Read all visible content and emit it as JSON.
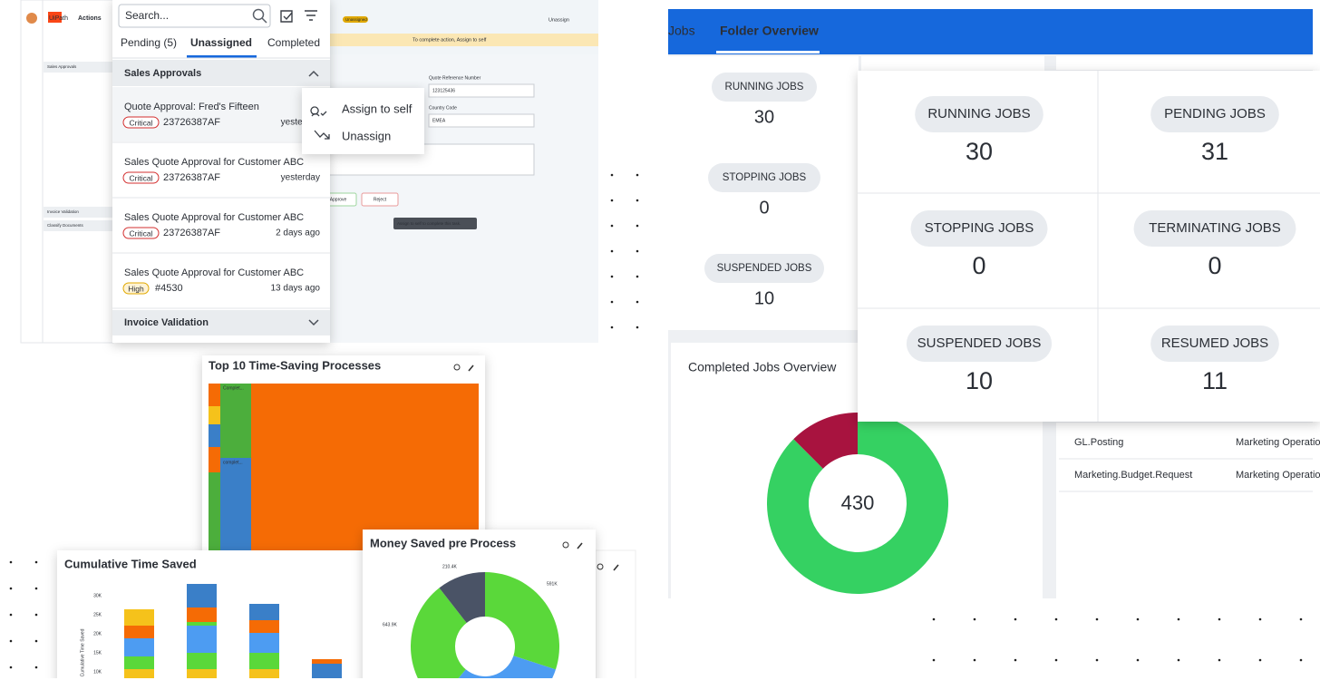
{
  "actions_app": {
    "logo": "UiPath",
    "brand": "Actions",
    "search_placeholder": "Search...",
    "tabs": [
      "Pending (5)",
      "Unassigned",
      "Completed"
    ],
    "sections": [
      "Sales Approvals",
      "Invoice Validation"
    ],
    "tasks": [
      {
        "title": "Quote Approval: Fred's Fifteen",
        "priority": "Critical",
        "id": "23726387AF",
        "time": "yesterday"
      },
      {
        "title": "Sales Quote Approval for Customer ABC",
        "priority": "Critical",
        "id": "23726387AF",
        "time": "yesterday"
      },
      {
        "title": "Sales Quote Approval for Customer ABC",
        "priority": "Critical",
        "id": "23726387AF",
        "time": "2 days ago"
      },
      {
        "title": "Sales Quote Approval for Customer ABC",
        "priority": "High",
        "id": "#4530",
        "time": "13 days ago"
      }
    ],
    "menu": [
      "Assign to self",
      "Unassign"
    ],
    "banner": "To complete action, Assign to self",
    "header_status": "Unassigned",
    "header_action": "Unassign",
    "fields": [
      "Quote Reference Number",
      "Country Code"
    ],
    "field_values": [
      "123125436",
      "EMEA"
    ],
    "buttons": [
      "Approve",
      "Reject"
    ],
    "tooltip": "Assign to self to complete this task.",
    "side_sections": [
      "Sales Approvals",
      "Invoice Validation",
      "Classify Documents"
    ]
  },
  "folder_overview": {
    "tabs": [
      "Jobs",
      "Folder Overview"
    ],
    "back_jobs": [
      {
        "label": "RUNNING JOBS",
        "value": "30"
      },
      {
        "label": "STOPPING JOBS",
        "value": "0"
      },
      {
        "label": "SUSPENDED JOBS",
        "value": "10"
      }
    ],
    "jobs": [
      {
        "label": "RUNNING JOBS",
        "value": "30"
      },
      {
        "label": "PENDING JOBS",
        "value": "31"
      },
      {
        "label": "STOPPING JOBS",
        "value": "0"
      },
      {
        "label": "TERMINATING JOBS",
        "value": "0"
      },
      {
        "label": "SUSPENDED JOBS",
        "value": "10"
      },
      {
        "label": "RESUMED JOBS",
        "value": "11"
      }
    ],
    "completed_title": "Completed Jobs Overview",
    "completed_total": "430",
    "rows": [
      [
        "GL.Posting",
        "Marketing Operatio"
      ],
      [
        "Marketing.Budget.Request",
        "Marketing Operatio"
      ]
    ]
  },
  "insights": {
    "treemap_title": "Top 10 Time-Saving Processes",
    "treemap_labels": [
      "Complet...",
      "complet..."
    ],
    "cumulative_title": "Cumulative Time Saved",
    "cumulative_axis": "Cumulative Time Saved",
    "cumulative_ticks": [
      "30K",
      "25K",
      "20K",
      "15K",
      "10K"
    ],
    "money_title": "Money Saved pre Process",
    "money_labels": [
      "210.4K",
      "591K",
      "643.9K"
    ]
  }
}
